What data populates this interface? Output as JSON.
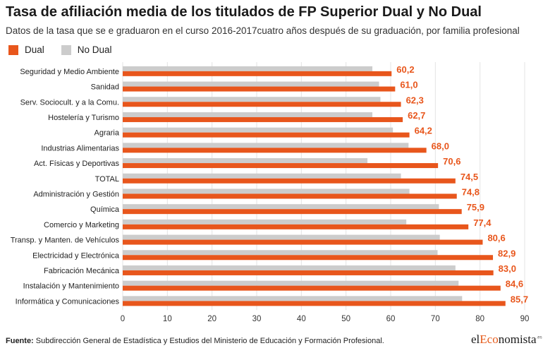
{
  "title": "Tasa de afiliación media de los titulados de FP Superior Dual y No Dual",
  "subtitle": "Datos de la tasa que se e graduaron en el curso 2016-2017cuatro años después de su graduación, por familia profesional",
  "footer": {
    "label": "Fuente:",
    "text": "Subdirección General de Estadística y Estudios del Ministerio de Educación y Formación Profesional."
  },
  "brand": {
    "pre": "el",
    "highlight": "Eco",
    "post": "nomista",
    "suffix": ".es"
  },
  "colors": {
    "dual": "#e8561c",
    "no_dual": "#cccccc",
    "label": "#e8561c",
    "grid": "#e3e3e3"
  },
  "chart_data": {
    "type": "bar",
    "orientation": "horizontal",
    "categories": [
      "Seguridad y Medio Ambiente",
      "Sanidad",
      "Serv. Sociocult. y a la Comu.",
      "Hostelería y Turismo",
      "Agraria",
      "Industrias Alimentarias",
      "Act. Físicas y Deportivas",
      "TOTAL",
      "Administración y Gestión",
      "Química",
      "Comercio y Marketing",
      "Transp. y Manten. de Vehículos",
      "Electricidad y Electrónica",
      "Fabricación Mecánica",
      "Instalación y Mantenimiento",
      "Informática y Comunicaciones"
    ],
    "series": [
      {
        "name": "Dual",
        "values": [
          60.2,
          61.0,
          62.3,
          62.7,
          64.2,
          68.0,
          70.6,
          74.5,
          74.8,
          75.9,
          77.4,
          80.6,
          82.9,
          83.0,
          84.6,
          85.7
        ],
        "labels": [
          "60,2",
          "61,0",
          "62,3",
          "62,7",
          "64,2",
          "68,0",
          "70,6",
          "74,5",
          "74,8",
          "75,9",
          "77,4",
          "80,6",
          "82,9",
          "83,0",
          "84,6",
          "85,7"
        ]
      },
      {
        "name": "No Dual",
        "values": [
          55.9,
          57.4,
          57.7,
          55.9,
          60.5,
          64.0,
          54.8,
          62.3,
          64.2,
          70.8,
          63.5,
          71.0,
          70.5,
          74.5,
          75.2,
          76.0
        ]
      }
    ],
    "xlim": [
      0,
      90
    ],
    "xticks": [
      0,
      10,
      20,
      30,
      40,
      50,
      60,
      70,
      80,
      90
    ],
    "legend": "top-left",
    "grid": true
  }
}
